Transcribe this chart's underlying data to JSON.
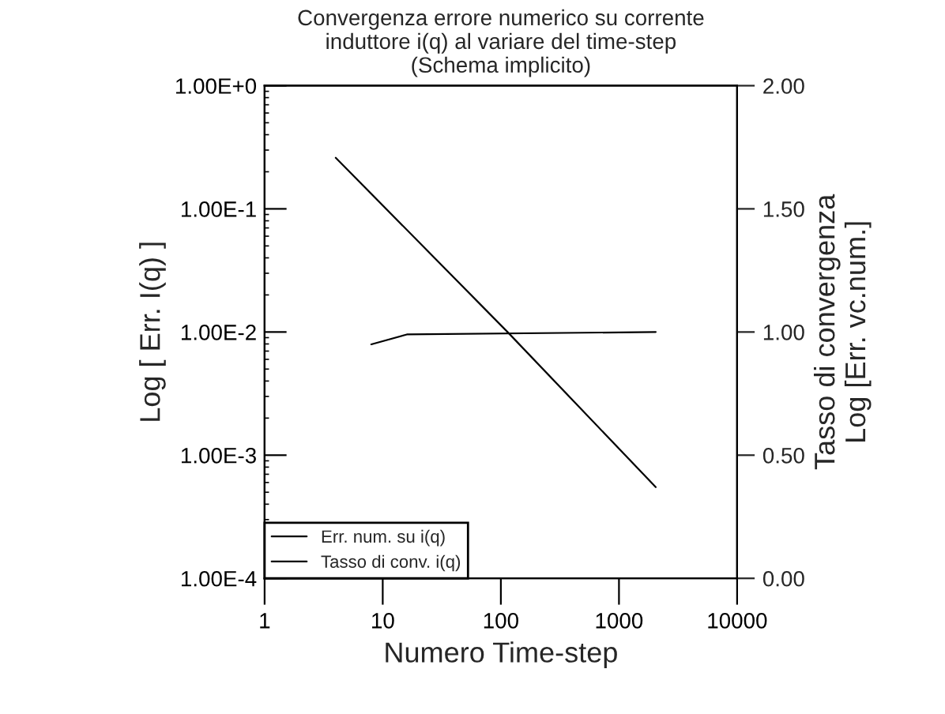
{
  "chart_data": {
    "type": "line",
    "title": "Convergenza errore numerico su corrente\ninduttore i(q) al variare del time-step\n(Schema implicito)",
    "xlabel": "Numero Time-step",
    "ylabel": "Log [ Err. I(q) ]",
    "y2label": "Tasso di convergenza\nLog [Err. vc.num.]",
    "log": "xy",
    "xlim": [
      1,
      10000
    ],
    "xticks": [
      1,
      10,
      100,
      1000,
      10000
    ],
    "ylim": [
      0.0001,
      1
    ],
    "yticks": [
      {
        "value": 0.0001,
        "label": "1.00E-4"
      },
      {
        "value": 0.001,
        "label": "1.00E-3"
      },
      {
        "value": 0.01,
        "label": "1.00E-2"
      },
      {
        "value": 0.1,
        "label": "1.00E-1"
      },
      {
        "value": 1,
        "label": "1.00E+0"
      }
    ],
    "y2lim": [
      0,
      2
    ],
    "y2ticks": [
      {
        "value": 0,
        "label": "0.00"
      },
      {
        "value": 0.5,
        "label": "0.50"
      },
      {
        "value": 1,
        "label": "1.00"
      },
      {
        "value": 1.5,
        "label": "1.50"
      },
      {
        "value": 2,
        "label": "2.00"
      }
    ],
    "grid": false,
    "legend": "bottom left",
    "series": [
      {
        "name": "Err. num. su i(q)",
        "color": "#000000",
        "x": [
          4,
          114,
          2048
        ],
        "values": [
          0.26,
          0.01,
          0.00055
        ]
      },
      {
        "name": "Tasso di conv. i(q)",
        "color": "#000000",
        "axis": "y2",
        "x": [
          8,
          16,
          2048
        ],
        "values": [
          0.95,
          0.99,
          1.0
        ]
      }
    ]
  }
}
